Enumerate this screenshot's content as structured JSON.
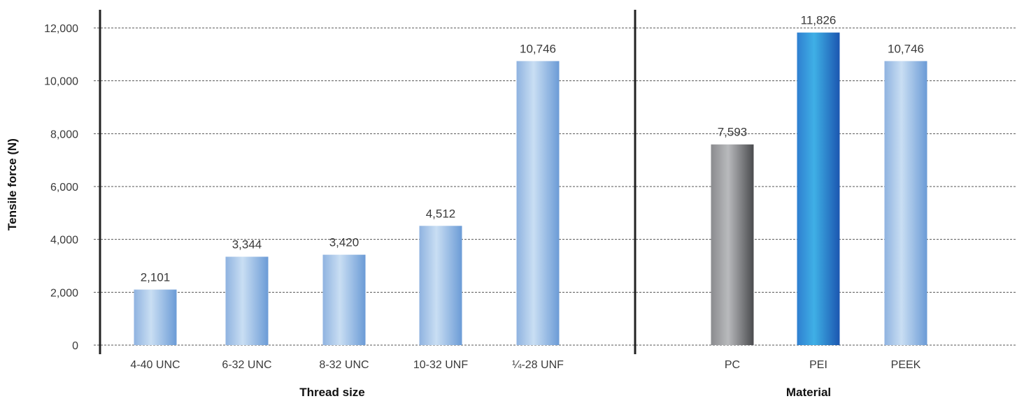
{
  "chart_data": {
    "type": "bar",
    "ylabel": "Tensile force (N)",
    "ylim": [
      0,
      12000
    ],
    "yticks": [
      0,
      2000,
      4000,
      6000,
      8000,
      10000,
      12000
    ],
    "ytick_labels": [
      "0",
      "2,000",
      "4,000",
      "6,000",
      "8,000",
      "10,000",
      "12,000"
    ],
    "grid": true,
    "panels": [
      {
        "xlabel": "Thread size",
        "categories": [
          "4-40 UNC",
          "6-32 UNC",
          "8-32 UNC",
          "10-32 UNF",
          "¼-28 UNF"
        ],
        "values": [
          2101,
          3344,
          3420,
          4512,
          10746
        ],
        "value_labels": [
          "2,101",
          "3,344",
          "3,420",
          "4,512",
          "10,746"
        ],
        "bar_styles": [
          "lightblue",
          "lightblue",
          "lightblue",
          "lightblue",
          "lightblue"
        ]
      },
      {
        "xlabel": "Material",
        "categories": [
          "PC",
          "PEI",
          "PEEK"
        ],
        "values": [
          7593,
          11826,
          10746
        ],
        "value_labels": [
          "7,593",
          "11,826",
          "10,746"
        ],
        "bar_styles": [
          "gray",
          "blue",
          "lightblue"
        ]
      }
    ],
    "colors": {
      "lightblue": [
        "#8fb3e0",
        "#c9def3",
        "#6b9bd6"
      ],
      "gray": [
        "#8a8b8e",
        "#b9babd",
        "#4a4b4e"
      ],
      "blue": [
        "#2f7fd0",
        "#3fb0e6",
        "#1b56b0"
      ]
    }
  }
}
